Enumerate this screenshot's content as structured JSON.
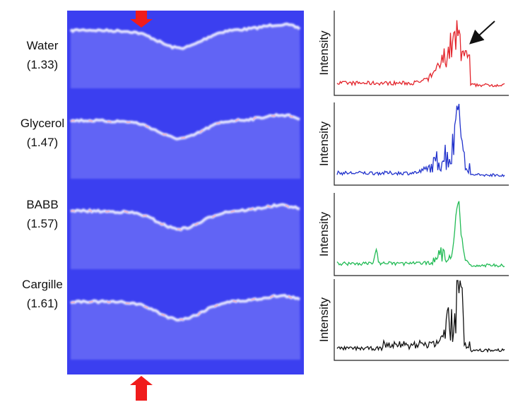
{
  "rows": [
    {
      "name": "Water",
      "index": "(1.33)",
      "color": "#e3242b"
    },
    {
      "name": "Glycerol",
      "index": "(1.47)",
      "color": "#2233cc"
    },
    {
      "name": "BABB",
      "index": "(1.57)",
      "color": "#22bb55"
    },
    {
      "name": "Cargille",
      "index": "(1.61)",
      "color": "#111111"
    }
  ],
  "y_axis_label": "Intensity"
}
